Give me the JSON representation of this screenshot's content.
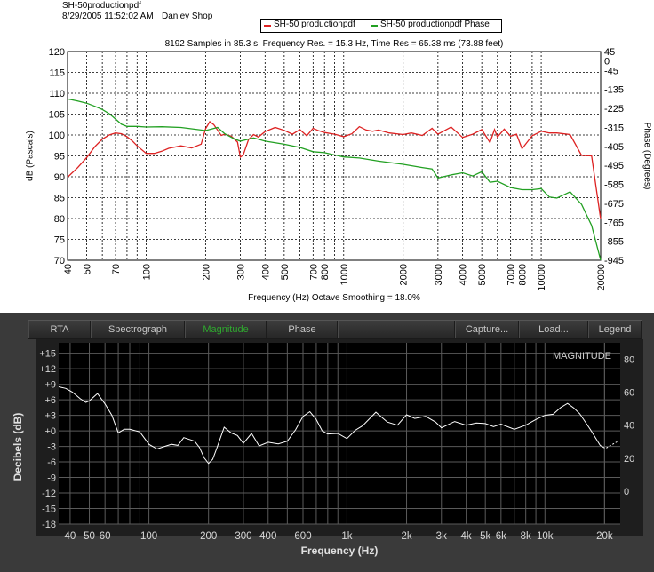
{
  "top": {
    "file_title": "SH-50productionpdf",
    "datetime": "8/29/2005  11:52:02 AM",
    "shop": "Danley Shop",
    "legend": [
      "SH-50 productionpdf",
      "SH-50 productionpdf Phase"
    ],
    "info": "8192 Samples in 85.3 s, Frequency Res. = 15.3 Hz, Time Res = 65.38 ms (73.88 feet)",
    "xlabel": "Frequency (Hz) Octave Smoothing = 18.0%",
    "ylabel": "dB (Pascals)",
    "y2label": "Phase (Degrees)"
  },
  "bottom": {
    "tabs": [
      "RTA",
      "Spectrograph",
      "Magnitude",
      "Phase",
      "Capture...",
      "Load...",
      "Legend"
    ],
    "active_tab": "Magnitude",
    "badge": "MAGNITUDE",
    "ylabel": "Decibels (dB)",
    "xlabel": "Frequency (Hz)"
  },
  "colors": {
    "magnitude": "#dd2222",
    "phase": "#22a022",
    "bottom_trace": "#ffffff",
    "active_tab": "#2fa82f"
  },
  "chart_data": [
    {
      "type": "line",
      "x_scale": "log",
      "xlim": [
        40,
        20000
      ],
      "ylim": [
        70,
        120
      ],
      "y2lim": [
        -945,
        45
      ],
      "x_ticks": [
        40,
        50,
        70,
        100,
        200,
        300,
        400,
        500,
        700,
        800,
        1000,
        2000,
        3000,
        4000,
        5000,
        7000,
        8000,
        10000,
        20000
      ],
      "y_ticks": [
        70,
        75,
        80,
        85,
        90,
        95,
        100,
        105,
        110,
        115,
        120
      ],
      "y2_ticks": [
        45,
        0,
        -45,
        -135,
        -225,
        -315,
        -405,
        -495,
        -585,
        -675,
        -765,
        -855,
        -945
      ],
      "grid": true,
      "legend_position": "top-center",
      "series": [
        {
          "name": "SH-50 productionpdf",
          "axis": "left",
          "x": [
            40,
            45,
            50,
            55,
            60,
            65,
            70,
            75,
            80,
            85,
            90,
            100,
            110,
            120,
            130,
            150,
            170,
            190,
            200,
            210,
            220,
            240,
            250,
            270,
            290,
            300,
            310,
            330,
            350,
            370,
            400,
            450,
            500,
            550,
            600,
            650,
            700,
            750,
            800,
            900,
            1000,
            1100,
            1200,
            1300,
            1400,
            1500,
            1700,
            2000,
            2200,
            2500,
            2800,
            3000,
            3500,
            4000,
            4500,
            5000,
            5500,
            5800,
            6000,
            6500,
            7000,
            7500,
            8000,
            9000,
            10000,
            11000,
            12000,
            14000,
            16000,
            18000,
            20000
          ],
          "y": [
            89.9,
            92.2,
            94.6,
            97.2,
            99.0,
            100.0,
            100.5,
            100.3,
            99.6,
            98.6,
            97.4,
            95.6,
            95.6,
            96.1,
            96.8,
            97.4,
            96.9,
            97.8,
            101.5,
            103.2,
            102.5,
            99.9,
            100.2,
            99.7,
            98.3,
            94.7,
            95.2,
            98.9,
            100.1,
            99.5,
            100.8,
            101.8,
            101.1,
            100.2,
            101.3,
            99.8,
            101.6,
            101.0,
            100.6,
            100.2,
            99.6,
            100.3,
            102.0,
            101.2,
            100.9,
            101.2,
            100.5,
            100.1,
            100.5,
            99.9,
            101.6,
            100.2,
            101.9,
            99.4,
            100.2,
            101.3,
            98.2,
            101.3,
            99.5,
            101.4,
            99.7,
            100.2,
            96.7,
            99.8,
            100.9,
            100.5,
            100.5,
            100.1,
            95.1,
            95.0,
            79.8
          ]
        },
        {
          "name": "SH-50 productionpdf Phase",
          "axis": "right",
          "x": [
            40,
            45,
            50,
            55,
            60,
            65,
            70,
            75,
            80,
            90,
            100,
            120,
            150,
            200,
            230,
            250,
            280,
            300,
            350,
            400,
            500,
            600,
            700,
            800,
            1000,
            1200,
            1500,
            2000,
            2500,
            2800,
            3000,
            3500,
            4000,
            4500,
            5000,
            5500,
            6000,
            7000,
            8000,
            9000,
            10000,
            11000,
            12000,
            14000,
            16000,
            18000,
            20000
          ],
          "y": [
            -180,
            -190,
            -200,
            -215,
            -230,
            -250,
            -275,
            -300,
            -310,
            -310,
            -313,
            -312,
            -315,
            -330,
            -315,
            -345,
            -370,
            -380,
            -365,
            -380,
            -395,
            -410,
            -430,
            -435,
            -455,
            -460,
            -475,
            -490,
            -505,
            -512,
            -555,
            -540,
            -530,
            -545,
            -525,
            -575,
            -570,
            -600,
            -610,
            -610,
            -605,
            -645,
            -650,
            -620,
            -680,
            -780,
            -945
          ]
        }
      ]
    },
    {
      "type": "line",
      "x_scale": "log",
      "xlim": [
        35,
        24000
      ],
      "ylim": [
        -18,
        17
      ],
      "y2lim": [
        -20,
        90
      ],
      "x_tick_labels": [
        "40",
        "50",
        "60",
        "100",
        "200",
        "300",
        "400",
        "600",
        "1k",
        "2k",
        "3k",
        "4k",
        "5k",
        "6k",
        "8k",
        "10k",
        "20k"
      ],
      "x_ticks": [
        40,
        50,
        60,
        100,
        200,
        300,
        400,
        600,
        1000,
        2000,
        3000,
        4000,
        5000,
        6000,
        8000,
        10000,
        20000
      ],
      "y_ticks": [
        -18,
        -15,
        -12,
        -9,
        -6,
        -3,
        0,
        3,
        6,
        9,
        12,
        15
      ],
      "y_tick_labels": [
        "-18",
        "-15",
        "-12",
        "-9",
        "-6",
        "-3",
        "+0",
        "+3",
        "+6",
        "+9",
        "+12",
        "+15"
      ],
      "y2_ticks": [
        0,
        20,
        40,
        60,
        80
      ],
      "grid": true,
      "series": [
        {
          "axis": "left",
          "x": [
            35,
            38,
            41,
            45,
            48,
            50,
            55,
            60,
            65,
            70,
            75,
            80,
            90,
            100,
            110,
            120,
            130,
            140,
            150,
            170,
            180,
            190,
            200,
            210,
            220,
            240,
            260,
            280,
            300,
            330,
            360,
            400,
            450,
            500,
            550,
            600,
            650,
            700,
            750,
            800,
            900,
            1000,
            1100,
            1200,
            1400,
            1600,
            1800,
            2000,
            2200,
            2500,
            2800,
            3000,
            3500,
            4000,
            4500,
            5000,
            5500,
            6000,
            7000,
            8000,
            9000,
            10000,
            11000,
            12000,
            13000,
            14000,
            15000,
            17000,
            19000,
            20000
          ],
          "y": [
            8.5,
            8.2,
            7.5,
            6.2,
            5.5,
            5.8,
            7.2,
            5.2,
            3.0,
            -0.4,
            0.3,
            0.3,
            -0.2,
            -2.6,
            -3.5,
            -3.0,
            -2.6,
            -2.8,
            -1.3,
            -2.0,
            -3.2,
            -5.2,
            -6.3,
            -5.5,
            -3.4,
            0.7,
            -0.4,
            -0.9,
            -2.4,
            -0.5,
            -2.9,
            -2.2,
            -2.5,
            -2.0,
            0.2,
            2.8,
            3.7,
            2.2,
            0.0,
            -0.6,
            -0.5,
            -1.5,
            0.1,
            1.0,
            3.6,
            1.7,
            1.1,
            3.1,
            2.4,
            2.8,
            1.7,
            0.6,
            1.8,
            1.1,
            1.5,
            1.4,
            0.8,
            1.3,
            0.3,
            1.1,
            2.2,
            3.0,
            3.2,
            4.5,
            5.3,
            4.4,
            3.3,
            0.2,
            -2.8,
            -3.3
          ]
        }
      ]
    }
  ]
}
